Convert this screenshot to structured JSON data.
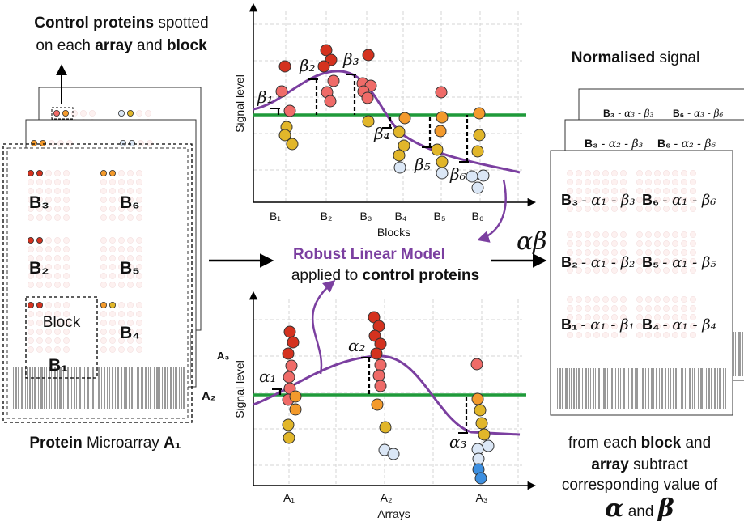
{
  "left_panel": {
    "caption": {
      "bold_a": "Control proteins",
      "rest_a": " spotted",
      "rest_b": "on each ",
      "bold_b": "array",
      "rest_c": " and ",
      "bold_c": "block"
    },
    "blocks": {
      "top_left": "B₃",
      "top_right": "B₆",
      "mid_left": "B₂",
      "mid_right": "B₅",
      "block_word": "Block",
      "bottom_left": "B₁",
      "bottom_right": "B₄"
    },
    "array_labels": [
      "A₃",
      "A₂"
    ],
    "footer": {
      "bold": "Protein",
      "rest": " Microarray ",
      "array": "A₁"
    }
  },
  "top_plot": {
    "y_label": "Signal level",
    "x_label": "Blocks",
    "categories": [
      "B₁",
      "B₂",
      "B₃",
      "B₄",
      "B₅",
      "B₆"
    ],
    "effects": [
      "β₁",
      "β₂",
      "β₃",
      "β₄",
      "β₅",
      "β₆"
    ]
  },
  "model": {
    "title": "Robust Linear Model",
    "rest": "applied to ",
    "bold": "control proteins",
    "params": "αβ"
  },
  "bottom_plot": {
    "y_label": "Signal level",
    "x_label": "Arrays",
    "categories": [
      "A₁",
      "A₂",
      "A₃"
    ],
    "effects": [
      "α₁",
      "α₂",
      "α₃"
    ]
  },
  "right_panel": {
    "title_bold": "Normalised",
    "title_rest": " signal",
    "back_formulas": [
      [
        "B₃",
        "- α₃ - β₃"
      ],
      [
        "B₆",
        "- α₃ - β₆"
      ]
    ],
    "middle_formulas": [
      [
        "B₃",
        "- α₂ - β₃"
      ],
      [
        "B₆",
        "- α₂ - β₆"
      ]
    ],
    "front_formulas": [
      [
        "B₃",
        "- α₁ - β₃"
      ],
      [
        "B₆",
        "- α₁ - β₆"
      ],
      [
        "B₂",
        "- α₁ - β₂"
      ],
      [
        "B₅",
        "- α₁ - β₅"
      ],
      [
        "B₁",
        "- α₁ - β₁"
      ],
      [
        "B₄",
        "- α₁ - β₄"
      ]
    ],
    "footer": {
      "a": "from each ",
      "b": "block",
      "c": " and",
      "d": "array",
      "e": " subtract",
      "f": "corresponding value of",
      "g": "α",
      "h": " and ",
      "i": "β"
    }
  }
}
